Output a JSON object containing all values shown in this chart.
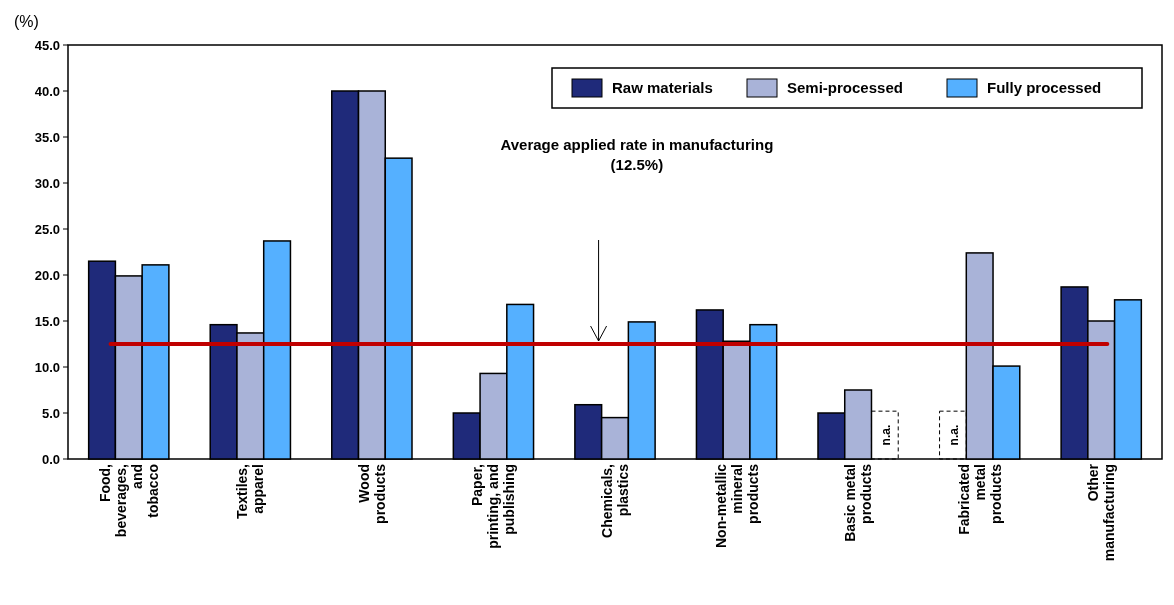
{
  "chart_data": {
    "type": "bar",
    "ylabel": "(%)",
    "categories": [
      "Food,\nbeverages,\nand\ntobacco",
      "Textiles,\napparel",
      "Wood\nproducts",
      "Paper,\nprinting, and\npublishing",
      "Chemicals,\nplastics",
      "Non-metallic\nmineral\nproducts",
      "Basic metal\nproducts",
      "Fabricated\nmetal\nproducts",
      "Other\nmanufacturing"
    ],
    "series": [
      {
        "name": "Raw materials",
        "color": "#1f2a7a",
        "values": [
          21.5,
          14.6,
          40.0,
          5.0,
          5.9,
          16.2,
          5.0,
          null,
          18.7
        ]
      },
      {
        "name": "Semi-processed",
        "color": "#a9b3d8",
        "values": [
          19.9,
          13.7,
          40.0,
          9.3,
          4.5,
          12.8,
          7.5,
          22.4,
          15.0
        ]
      },
      {
        "name": "Fully processed",
        "color": "#55b0ff",
        "values": [
          21.1,
          23.7,
          32.7,
          16.8,
          14.9,
          14.6,
          null,
          10.1,
          17.3
        ]
      }
    ],
    "ylim": [
      0,
      45
    ],
    "yticks": [
      {
        "value": 0,
        "label": "0.0"
      },
      {
        "value": 5,
        "label": "5.0"
      },
      {
        "value": 10,
        "label": "10.0"
      },
      {
        "value": 15,
        "label": "15.0"
      },
      {
        "value": 20,
        "label": "20.0"
      },
      {
        "value": 25,
        "label": "25.0"
      },
      {
        "value": 30,
        "label": "30.0"
      },
      {
        "value": 35,
        "label": "35.0"
      },
      {
        "value": 40,
        "label": "40.0"
      },
      {
        "value": 45,
        "label": "45.0"
      }
    ],
    "ref_lines": [
      {
        "axis": "y",
        "value": 12.5,
        "color": "#c00000"
      }
    ],
    "annotations": [
      "Average applied rate in manufacturing\n(12.5%)",
      {
        "text": "n.a.",
        "x": "Basic metal\nproducts",
        "y": 0
      },
      {
        "text": "n.a.",
        "x": "Fabricated\nmetal\nproducts",
        "y": 0
      }
    ],
    "legend": "top right",
    "grid": false
  }
}
